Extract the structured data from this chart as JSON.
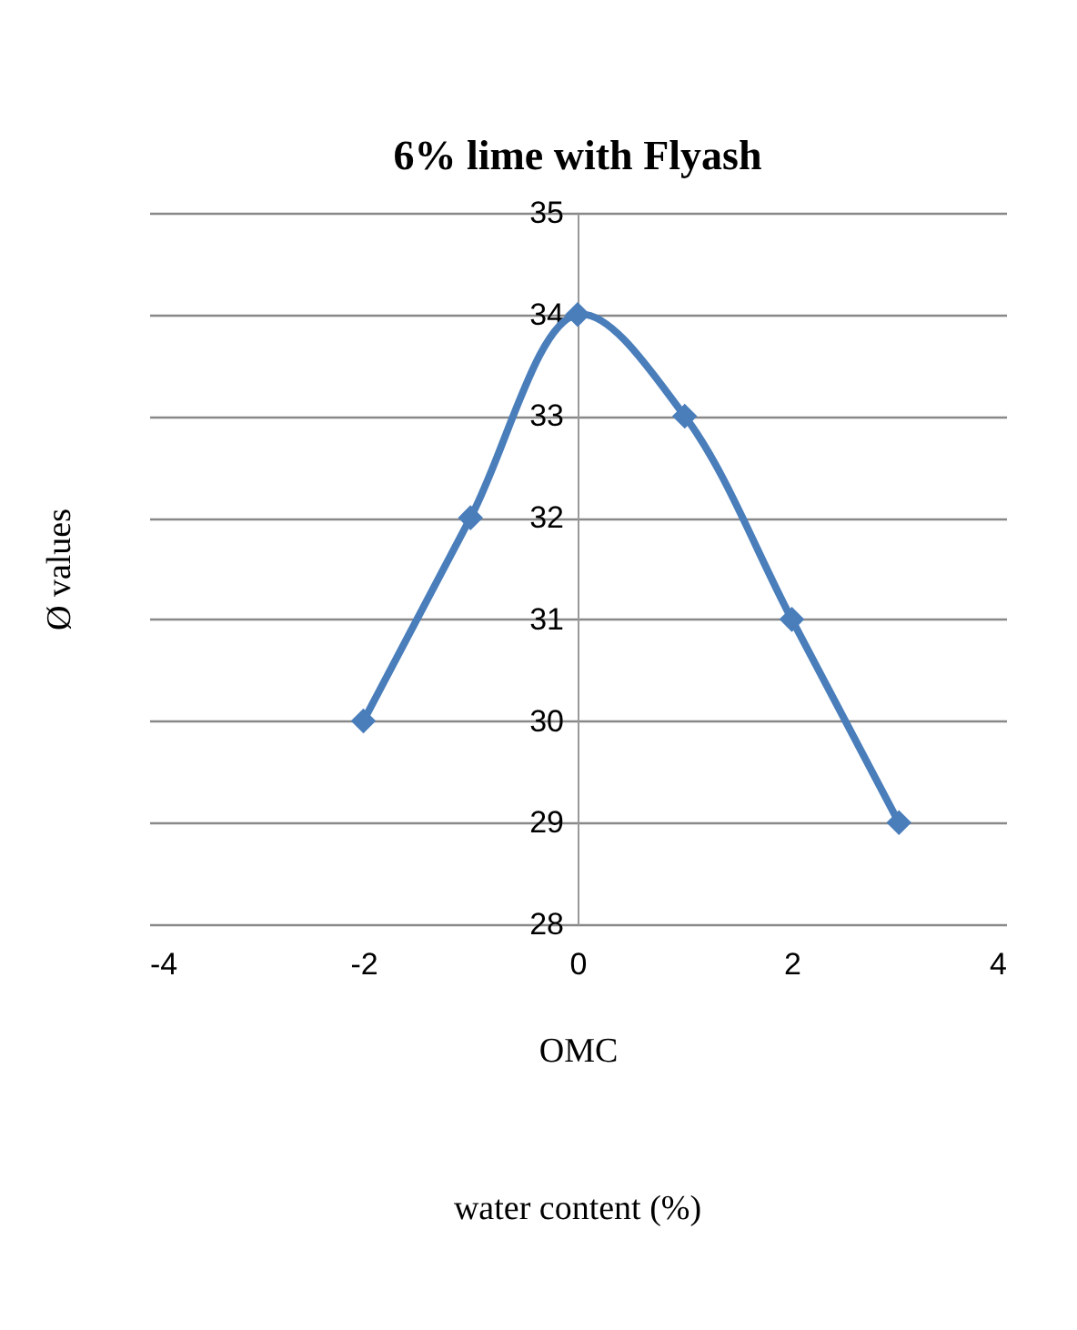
{
  "chart_data": {
    "type": "line",
    "title": "6% lime with Flyash",
    "xlabel": "OMC",
    "ylabel": "Ø values",
    "annotations": [
      "water content (%)"
    ],
    "x": [
      -2,
      -1,
      0,
      1,
      2,
      3
    ],
    "series": [
      {
        "color": "#4a7ebb",
        "values": [
          30,
          32,
          34,
          33,
          31,
          29
        ]
      }
    ],
    "xlim": [
      -4,
      4
    ],
    "xticks": [
      -4,
      -2,
      0,
      2,
      4
    ],
    "ylim": [
      28,
      35
    ],
    "yticks": [
      28,
      29,
      30,
      31,
      32,
      33,
      34,
      35
    ],
    "grid": "y",
    "marker": "diamond",
    "line_style": "solid"
  }
}
